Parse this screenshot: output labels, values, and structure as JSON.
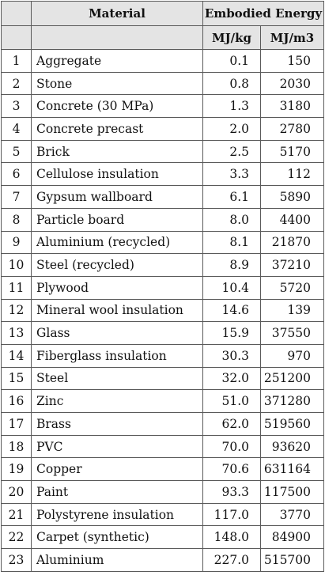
{
  "header": {
    "material": "Material",
    "embodied_energy": "Embodied Energy",
    "unit_kg": "MJ/kg",
    "unit_m3": "MJ/m3"
  },
  "rows": [
    {
      "n": "1",
      "material": "Aggregate",
      "mj_kg": "0.1",
      "mj_m3": "150"
    },
    {
      "n": "2",
      "material": "Stone",
      "mj_kg": "0.8",
      "mj_m3": "2030"
    },
    {
      "n": "3",
      "material": "Concrete (30 MPa)",
      "mj_kg": "1.3",
      "mj_m3": "3180"
    },
    {
      "n": "4",
      "material": "Concrete precast",
      "mj_kg": "2.0",
      "mj_m3": "2780"
    },
    {
      "n": "5",
      "material": "Brick",
      "mj_kg": "2.5",
      "mj_m3": "5170"
    },
    {
      "n": "6",
      "material": "Cellulose insulation",
      "mj_kg": "3.3",
      "mj_m3": "112"
    },
    {
      "n": "7",
      "material": "Gypsum wallboard",
      "mj_kg": "6.1",
      "mj_m3": "5890"
    },
    {
      "n": "8",
      "material": "Particle board",
      "mj_kg": "8.0",
      "mj_m3": "4400"
    },
    {
      "n": "9",
      "material": "Aluminium (recycled)",
      "mj_kg": "8.1",
      "mj_m3": "21870"
    },
    {
      "n": "10",
      "material": "Steel (recycled)",
      "mj_kg": "8.9",
      "mj_m3": "37210"
    },
    {
      "n": "11",
      "material": "Plywood",
      "mj_kg": "10.4",
      "mj_m3": "5720"
    },
    {
      "n": "12",
      "material": "Mineral wool insulation",
      "mj_kg": "14.6",
      "mj_m3": "139"
    },
    {
      "n": "13",
      "material": "Glass",
      "mj_kg": "15.9",
      "mj_m3": "37550"
    },
    {
      "n": "14",
      "material": "Fiberglass insulation",
      "mj_kg": "30.3",
      "mj_m3": "970"
    },
    {
      "n": "15",
      "material": "Steel",
      "mj_kg": "32.0",
      "mj_m3": "251200"
    },
    {
      "n": "16",
      "material": "Zinc",
      "mj_kg": "51.0",
      "mj_m3": "371280"
    },
    {
      "n": "17",
      "material": "Brass",
      "mj_kg": "62.0",
      "mj_m3": "519560"
    },
    {
      "n": "18",
      "material": "PVC",
      "mj_kg": "70.0",
      "mj_m3": "93620"
    },
    {
      "n": "19",
      "material": "Copper",
      "mj_kg": "70.6",
      "mj_m3": "631164"
    },
    {
      "n": "20",
      "material": "Paint",
      "mj_kg": "93.3",
      "mj_m3": "117500"
    },
    {
      "n": "21",
      "material": "Polystyrene insulation",
      "mj_kg": "117.0",
      "mj_m3": "3770"
    },
    {
      "n": "22",
      "material": "Carpet (synthetic)",
      "mj_kg": "148.0",
      "mj_m3": "84900"
    },
    {
      "n": "23",
      "material": "Aluminium",
      "mj_kg": "227.0",
      "mj_m3": "515700"
    }
  ]
}
